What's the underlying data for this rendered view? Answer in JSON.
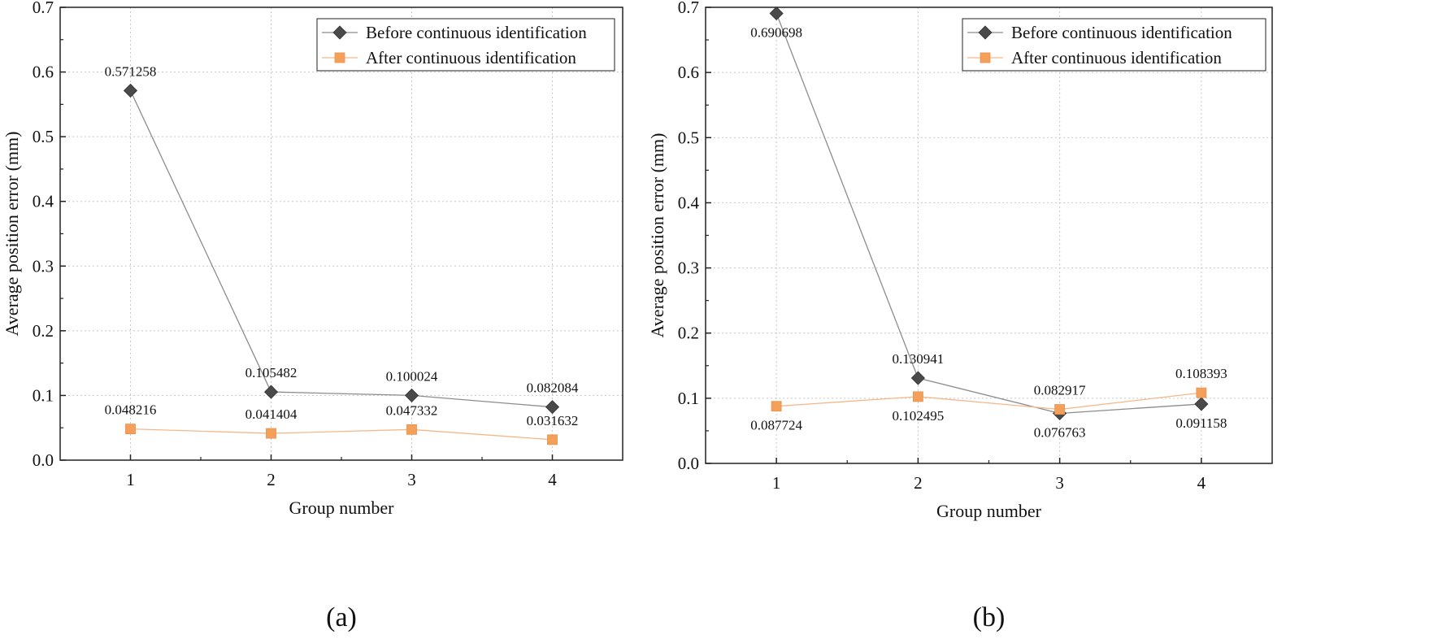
{
  "chart_data": [
    {
      "type": "line",
      "panel_label": "(a)",
      "xlabel": "Group number",
      "ylabel": "Average position error (mm)",
      "x": [
        1,
        2,
        3,
        4
      ],
      "xtick_labels": [
        "1",
        "2",
        "3",
        "4"
      ],
      "xlim": [
        0.5,
        4.5
      ],
      "ylim": [
        0,
        0.7
      ],
      "ytick_labels": [
        "0.0",
        "0.1",
        "0.2",
        "0.3",
        "0.4",
        "0.5",
        "0.6",
        "0.7"
      ],
      "grid": true,
      "legend_position": "top-right",
      "series": [
        {
          "name": "Before continuous identification",
          "color": "#4a4a4a",
          "line_color": "#8c8c8c",
          "marker": "diamond",
          "values": [
            0.571258,
            0.105482,
            0.100024,
            0.082084
          ],
          "labels": [
            "0.571258",
            "0.105482",
            "0.100024",
            "0.082084"
          ],
          "label_side": [
            "above",
            "above",
            "above",
            "above"
          ]
        },
        {
          "name": "After continuous identification",
          "color": "#f5a05a",
          "line_color": "#f5b88a",
          "marker": "square",
          "values": [
            0.048216,
            0.041404,
            0.047332,
            0.031632
          ],
          "labels": [
            "0.048216",
            "0.041404",
            "0.047332",
            "0.031632"
          ],
          "label_side": [
            "above",
            "above",
            "above",
            "above"
          ]
        }
      ]
    },
    {
      "type": "line",
      "panel_label": "(b)",
      "xlabel": "Group number",
      "ylabel": "Average position error (mm)",
      "x": [
        1,
        2,
        3,
        4
      ],
      "xtick_labels": [
        "1",
        "2",
        "3",
        "4"
      ],
      "xlim": [
        0.5,
        4.5
      ],
      "ylim": [
        0,
        0.7
      ],
      "ytick_labels": [
        "0.0",
        "0.1",
        "0.2",
        "0.3",
        "0.4",
        "0.5",
        "0.6",
        "0.7"
      ],
      "grid": true,
      "legend_position": "top-right",
      "series": [
        {
          "name": "Before continuous identification",
          "color": "#4a4a4a",
          "line_color": "#8c8c8c",
          "marker": "diamond",
          "values": [
            0.690698,
            0.130941,
            0.076763,
            0.091158
          ],
          "labels": [
            "0.690698",
            "0.130941",
            "0.076763",
            "0.091158"
          ],
          "label_side": [
            "below",
            "above",
            "below",
            "below"
          ]
        },
        {
          "name": "After continuous identification",
          "color": "#f5a05a",
          "line_color": "#f5b88a",
          "marker": "square",
          "values": [
            0.087724,
            0.102495,
            0.082917,
            0.108393
          ],
          "labels": [
            "0.087724",
            "0.102495",
            "0.082917",
            "0.108393"
          ],
          "label_side": [
            "below",
            "below",
            "above",
            "above"
          ]
        }
      ]
    }
  ]
}
